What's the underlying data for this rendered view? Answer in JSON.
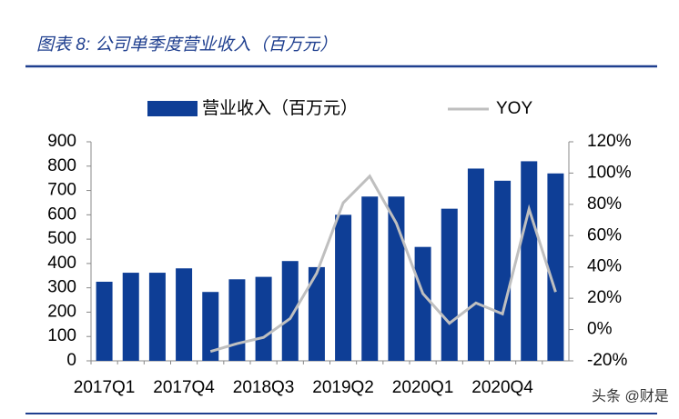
{
  "chart_data": {
    "type": "bar",
    "title": "图表 8: 公司单季度营业收入（百万元）",
    "watermark": "头条 @财是",
    "categories": [
      "2017Q1",
      null,
      null,
      "2017Q4",
      null,
      null,
      "2018Q3",
      null,
      null,
      "2019Q2",
      null,
      null,
      "2020Q1",
      null,
      null,
      "2020Q4",
      null,
      null
    ],
    "series": [
      {
        "name": "营业收入（百万元）",
        "type": "bar",
        "color": "#0e3e96",
        "values": [
          325,
          362,
          362,
          380,
          283,
          335,
          345,
          410,
          385,
          600,
          675,
          675,
          468,
          625,
          790,
          740,
          820,
          770
        ]
      },
      {
        "name": "YOY",
        "type": "line",
        "axis": "y2",
        "color": "#bfbfbf",
        "values": [
          null,
          null,
          null,
          null,
          -14,
          -9,
          -5,
          7,
          36,
          81,
          98,
          68,
          23,
          4,
          17,
          10,
          77,
          24
        ]
      }
    ],
    "ylim": [
      0,
      900
    ],
    "yticks": [
      0,
      100,
      200,
      300,
      400,
      500,
      600,
      700,
      800,
      900
    ],
    "y2lim": [
      -20,
      120
    ],
    "y2ticks": [
      {
        "value": -20,
        "label": "-20%"
      },
      {
        "value": 0,
        "label": "0%"
      },
      {
        "value": 20,
        "label": "20%"
      },
      {
        "value": 40,
        "label": "40%"
      },
      {
        "value": 60,
        "label": "60%"
      },
      {
        "value": 80,
        "label": "80%"
      },
      {
        "value": 100,
        "label": "100%"
      },
      {
        "value": 120,
        "label": "120%"
      }
    ],
    "grid": false,
    "legend": "top"
  }
}
